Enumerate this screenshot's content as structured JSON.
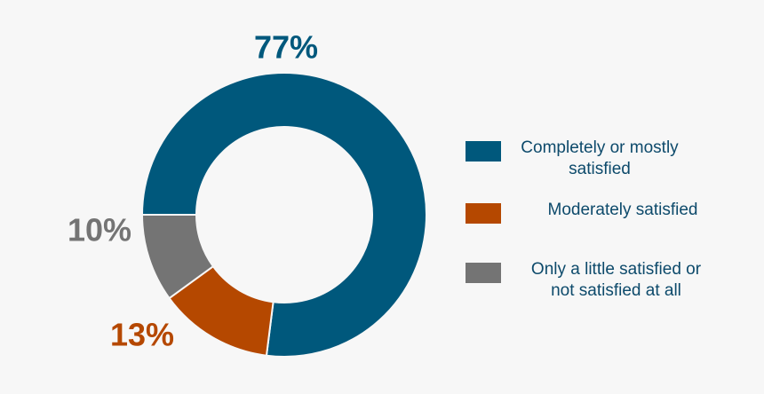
{
  "chart_data": {
    "type": "donut",
    "categories": [
      "Completely or mostly satisfied",
      "Moderately satisfied",
      "Only a little satisfied or not satisfied at all"
    ],
    "values": [
      77,
      13,
      10
    ],
    "value_labels": [
      "77%",
      "13%",
      "10%"
    ],
    "colors": [
      "#00587c",
      "#b54800",
      "#747474"
    ]
  }
}
